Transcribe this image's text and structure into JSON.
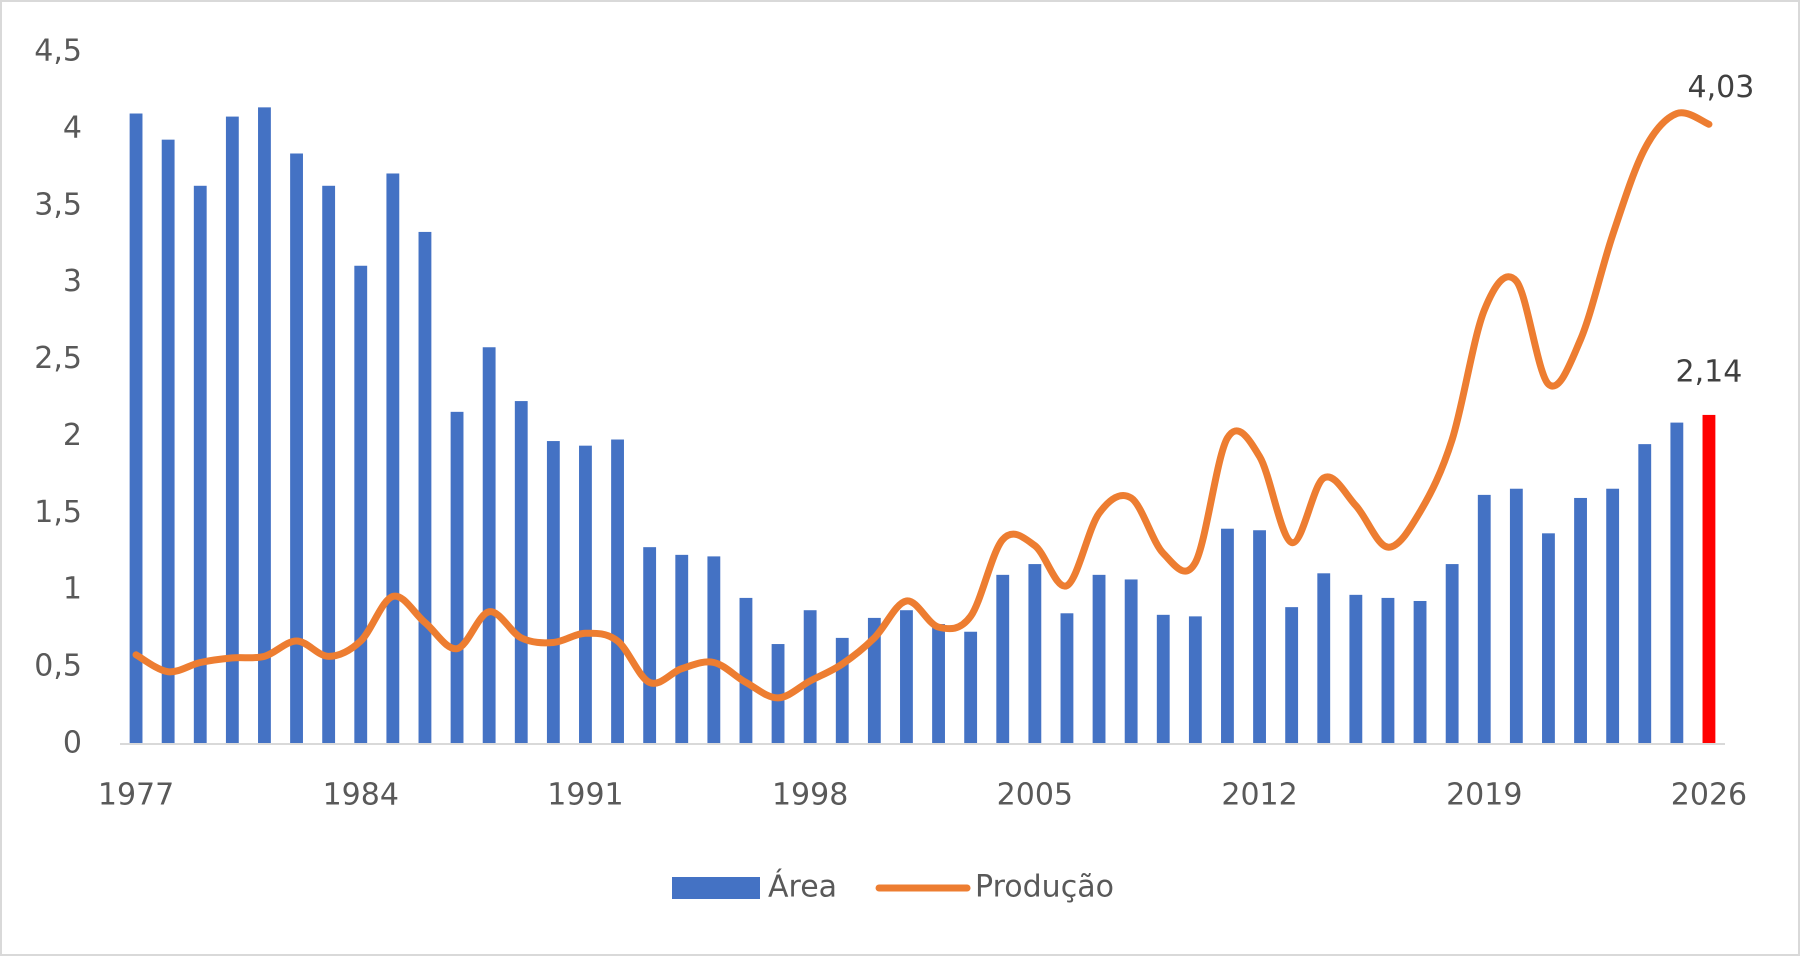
{
  "chart_data": {
    "type": "bar-line",
    "x": [
      1977,
      1978,
      1979,
      1980,
      1981,
      1982,
      1983,
      1984,
      1985,
      1986,
      1987,
      1988,
      1989,
      1990,
      1991,
      1992,
      1993,
      1994,
      1995,
      1996,
      1997,
      1998,
      1999,
      2000,
      2001,
      2002,
      2003,
      2004,
      2005,
      2006,
      2007,
      2008,
      2009,
      2010,
      2011,
      2012,
      2013,
      2014,
      2015,
      2016,
      2017,
      2018,
      2019,
      2020,
      2021,
      2022,
      2023,
      2024,
      2025,
      2026
    ],
    "xlim": [
      1976.5,
      2026.5
    ],
    "xticks": [
      1977,
      1984,
      1991,
      1998,
      2005,
      2012,
      2019,
      2026
    ],
    "ylim": [
      0,
      4.5
    ],
    "yticks": [
      0,
      {
        "value": 0.5,
        "label": "0,5"
      },
      1,
      {
        "value": 1.5,
        "label": "1,5"
      },
      2,
      {
        "value": 2.5,
        "label": "2,5"
      },
      3,
      {
        "value": 3.5,
        "label": "3,5"
      },
      4,
      {
        "value": 4.5,
        "label": "4,5"
      }
    ],
    "grid": false,
    "legend": "bottom",
    "series": [
      {
        "name": "Área",
        "kind": "bar",
        "color": "#4472c4",
        "colors": [
          "#4472c4",
          "#4472c4",
          "#4472c4",
          "#4472c4",
          "#4472c4",
          "#4472c4",
          "#4472c4",
          "#4472c4",
          "#4472c4",
          "#4472c4",
          "#4472c4",
          "#4472c4",
          "#4472c4",
          "#4472c4",
          "#4472c4",
          "#4472c4",
          "#4472c4",
          "#4472c4",
          "#4472c4",
          "#4472c4",
          "#4472c4",
          "#4472c4",
          "#4472c4",
          "#4472c4",
          "#4472c4",
          "#4472c4",
          "#4472c4",
          "#4472c4",
          "#4472c4",
          "#4472c4",
          "#4472c4",
          "#4472c4",
          "#4472c4",
          "#4472c4",
          "#4472c4",
          "#4472c4",
          "#4472c4",
          "#4472c4",
          "#4472c4",
          "#4472c4",
          "#4472c4",
          "#4472c4",
          "#4472c4",
          "#4472c4",
          "#4472c4",
          "#4472c4",
          "#4472c4",
          "#4472c4",
          "#4472c4",
          "#ff0000"
        ],
        "values": [
          4.1,
          3.93,
          3.63,
          4.08,
          4.14,
          3.84,
          3.63,
          3.11,
          3.71,
          3.33,
          2.16,
          2.58,
          2.23,
          1.97,
          1.94,
          1.98,
          1.28,
          1.23,
          1.22,
          0.95,
          0.65,
          0.87,
          0.69,
          0.82,
          0.87,
          0.78,
          0.73,
          1.1,
          1.17,
          0.85,
          1.1,
          1.07,
          0.84,
          0.83,
          1.4,
          1.39,
          0.89,
          1.11,
          0.97,
          0.95,
          0.93,
          1.17,
          1.62,
          1.66,
          1.37,
          1.6,
          1.66,
          1.95,
          2.09,
          2.14
        ],
        "value_labels": [
          null,
          null,
          null,
          null,
          null,
          null,
          null,
          null,
          null,
          null,
          null,
          null,
          null,
          null,
          null,
          null,
          null,
          null,
          null,
          null,
          null,
          null,
          null,
          null,
          null,
          null,
          null,
          null,
          null,
          null,
          null,
          null,
          null,
          null,
          null,
          null,
          null,
          null,
          null,
          null,
          null,
          null,
          null,
          null,
          null,
          null,
          null,
          null,
          null,
          "2,14"
        ]
      },
      {
        "name": "Produção",
        "kind": "line",
        "color": "#ed7d31",
        "values": [
          0.58,
          0.47,
          0.53,
          0.56,
          0.57,
          0.67,
          0.57,
          0.67,
          0.96,
          0.79,
          0.62,
          0.86,
          0.69,
          0.66,
          0.72,
          0.67,
          0.4,
          0.49,
          0.53,
          0.4,
          0.3,
          0.41,
          0.52,
          0.69,
          0.93,
          0.76,
          0.83,
          1.33,
          1.29,
          1.03,
          1.5,
          1.6,
          1.24,
          1.18,
          1.99,
          1.87,
          1.31,
          1.73,
          1.55,
          1.28,
          1.51,
          1.98,
          2.82,
          3.01,
          2.34,
          2.63,
          3.31,
          3.87,
          4.1,
          4.03
        ],
        "value_labels": [
          null,
          null,
          null,
          null,
          null,
          null,
          null,
          null,
          null,
          null,
          null,
          null,
          null,
          null,
          null,
          null,
          null,
          null,
          null,
          null,
          null,
          null,
          null,
          null,
          null,
          null,
          null,
          null,
          null,
          null,
          null,
          null,
          null,
          null,
          null,
          null,
          null,
          null,
          null,
          null,
          null,
          null,
          null,
          null,
          null,
          null,
          null,
          null,
          null,
          "4,03"
        ]
      }
    ]
  }
}
